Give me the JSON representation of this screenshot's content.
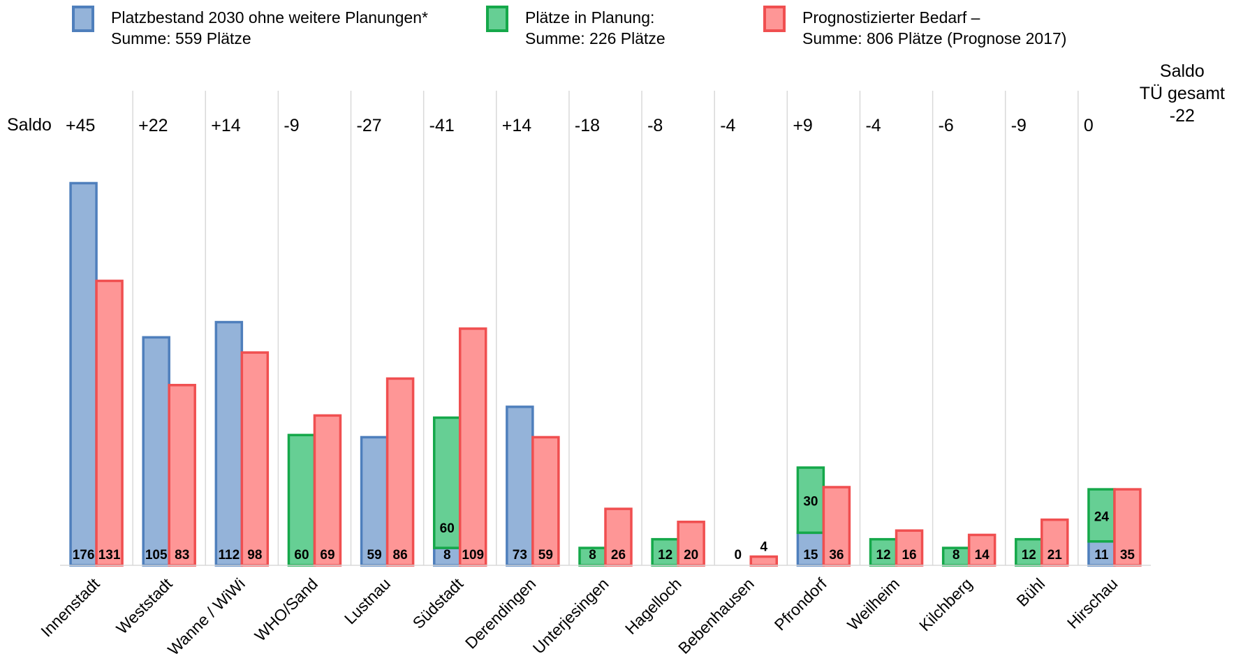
{
  "legend": [
    {
      "line1": "Platzbestand 2030 ohne weitere Planungen*",
      "line2": "Summe: 559 Plätze",
      "fill": "#94b3d9",
      "stroke": "#4f7fbc"
    },
    {
      "line1": "Plätze in Planung:",
      "line2": "Summe: 226 Plätze",
      "fill": "#66cf94",
      "stroke": "#15a84a"
    },
    {
      "line1": "Prognostizierter Bedarf –",
      "line2": "Summe: 806 Plätze (Prognose 2017)",
      "fill": "#fe9696",
      "stroke": "#f04f50"
    }
  ],
  "saldo_label": "Saldo",
  "saldo_total": {
    "line1": "Saldo",
    "line2": "TÜ gesamt",
    "value": "-22"
  },
  "chart_data": {
    "type": "bar",
    "categories": [
      "Innenstadt",
      "Weststadt",
      "Wanne / WiWi",
      "WHO/Sand",
      "Lustnau",
      "Südstadt",
      "Derendingen",
      "Unterjesingen",
      "Hagelloch",
      "Bebenhausen",
      "Pfrondorf",
      "Weilheim",
      "Kilchberg",
      "Bühl",
      "Hirschau"
    ],
    "series": [
      {
        "name": "Platzbestand 2030 ohne weitere Planungen*",
        "values": [
          176,
          105,
          112,
          0,
          59,
          8,
          73,
          0,
          0,
          0,
          15,
          0,
          0,
          0,
          11
        ],
        "labels": [
          "176",
          "105",
          "112",
          "",
          "59",
          "8",
          "73",
          "",
          "",
          "0",
          "15",
          "",
          "",
          "",
          "11"
        ],
        "stack": "A"
      },
      {
        "name": "Plätze in Planung:",
        "values": [
          0,
          0,
          0,
          60,
          0,
          60,
          0,
          8,
          12,
          0,
          30,
          12,
          8,
          12,
          24
        ],
        "labels": [
          "",
          "",
          "",
          "60",
          "",
          "60",
          "",
          "8",
          "12",
          "",
          "30",
          "12",
          "8",
          "12",
          "24"
        ],
        "stack": "A"
      },
      {
        "name": "Prognostizierter Bedarf –",
        "values": [
          131,
          83,
          98,
          69,
          86,
          109,
          59,
          26,
          20,
          4,
          36,
          16,
          14,
          21,
          35
        ],
        "labels": [
          "131",
          "83",
          "98",
          "69",
          "86",
          "109",
          "59",
          "26",
          "20",
          "4",
          "36",
          "16",
          "14",
          "21",
          "35"
        ],
        "stack": "B"
      }
    ],
    "saldo": [
      "+45",
      "+22",
      "+14",
      "-9",
      "-27",
      "-41",
      "+14",
      "-18",
      "-8",
      "-4",
      "+9",
      "-4",
      "-6",
      "-9",
      "0"
    ],
    "ylim": [
      0,
      180
    ],
    "grid": "vertical separators",
    "legend_position": "top"
  }
}
